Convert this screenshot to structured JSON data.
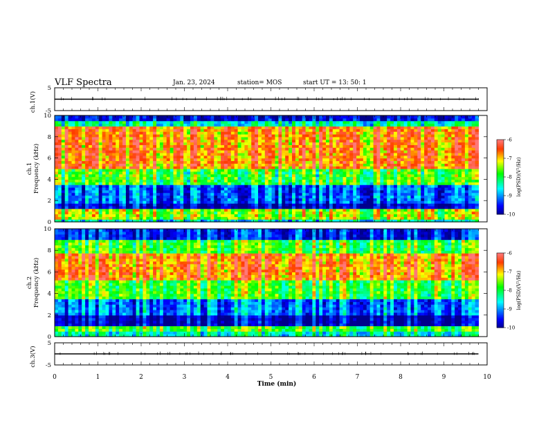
{
  "header": {
    "title": "VLF Spectra",
    "date": "Jan. 23, 2024",
    "station": "station= MOS",
    "start_ut": "start UT = 13: 50: 1"
  },
  "chart_data": [
    {
      "type": "line",
      "panel": "ch1-waveform",
      "ylabel": "ch.1(V)",
      "ylim": [
        -5,
        5
      ],
      "yticks": [
        "5",
        "-5"
      ],
      "xlim": [
        0,
        10
      ],
      "series": [
        {
          "x": [
            0,
            9.8
          ],
          "values": [
            0,
            0
          ]
        }
      ]
    },
    {
      "type": "heatmap",
      "panel": "ch1-spectrogram",
      "ylabel_line1": "ch.1",
      "ylabel_line2": "Frequency (kHz)",
      "ylim": [
        0,
        10
      ],
      "yticks": [
        "0",
        "2",
        "4",
        "6",
        "8",
        "10"
      ],
      "xlim": [
        0,
        10
      ],
      "colorbar": {
        "label": "log(PSD)(V²/Hz)",
        "range": [
          -10,
          -6
        ],
        "ticks": [
          "-6",
          "-7",
          "-8",
          "-9",
          "-10"
        ]
      }
    },
    {
      "type": "heatmap",
      "panel": "ch2-spectrogram",
      "ylabel_line1": "ch.2",
      "ylabel_line2": "Frequency (kHz)",
      "ylim": [
        0,
        10
      ],
      "yticks": [
        "0",
        "2",
        "4",
        "6",
        "8",
        "10"
      ],
      "xlim": [
        0,
        10
      ],
      "colorbar": {
        "label": "log(PSD)(V²/Hz)",
        "range": [
          -10,
          -6
        ],
        "ticks": [
          "-6",
          "-7",
          "-8",
          "-9",
          "-10"
        ]
      }
    },
    {
      "type": "line",
      "panel": "ch3-waveform",
      "ylabel": "ch.3(V)",
      "ylim": [
        -5,
        5
      ],
      "yticks": [
        "5",
        "-5"
      ],
      "xlim": [
        0,
        10
      ],
      "series": [
        {
          "x": [
            0,
            9.8
          ],
          "values": [
            0,
            0
          ]
        }
      ]
    }
  ],
  "xaxis": {
    "label": "Time (min)",
    "ticks": [
      "0",
      "1",
      "2",
      "3",
      "4",
      "5",
      "6",
      "7",
      "8",
      "9",
      "10"
    ]
  }
}
